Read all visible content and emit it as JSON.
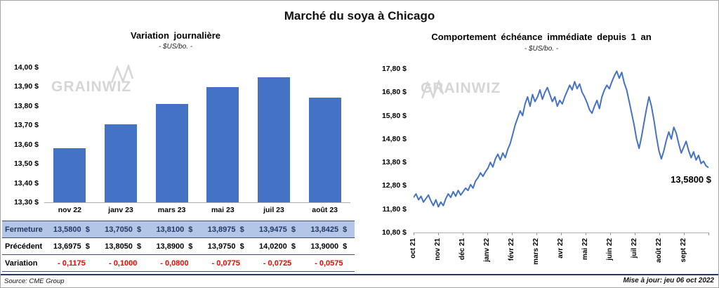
{
  "title": "Marché du soya à Chicago",
  "watermark": "GRAINWIZ",
  "left": {
    "title": "Variation journalière",
    "subtitle": "- $US/bo. -",
    "source": "Source: CME Group"
  },
  "right": {
    "title": "Comportement échéance immédiate depuis 1 an",
    "subtitle": "- $US/bo. -",
    "annotation": "13,5800 $",
    "updated": "Mise à jour: jeu 06 oct 2022"
  },
  "table": {
    "rows": [
      {
        "key": "fermeture",
        "label": "Fermeture",
        "values": [
          "13,5800  $",
          "13,7050  $",
          "13,8100  $",
          "13,8975  $",
          "13,9475  $",
          "13,8425  $"
        ]
      },
      {
        "key": "precedent",
        "label": "Précédent",
        "values": [
          "13,6975  $",
          "13,8050  $",
          "13,8900  $",
          "13,9750  $",
          "14,0200  $",
          "13,9000  $"
        ]
      },
      {
        "key": "variation",
        "label": "Variation",
        "values": [
          "- 0,1175",
          "- 0,1000",
          "- 0,0800",
          "- 0,0775",
          "- 0,0725",
          "- 0,0575"
        ]
      }
    ]
  },
  "colors": {
    "accent_blue": "#4472C4",
    "table_highlight_bg": "#B4C6E7",
    "table_highlight_text": "#1F3864",
    "negative_red": "#FF0000",
    "rule_navy": "#1F3864",
    "watermark_gray": "#D6D6D6"
  },
  "chart_data": [
    {
      "type": "bar",
      "title": "Variation journalière",
      "subtitle": "- $US/bo. -",
      "categories": [
        "nov 22",
        "janv 23",
        "mars 23",
        "mai 23",
        "juil 23",
        "août 23"
      ],
      "values": [
        13.58,
        13.705,
        13.81,
        13.8975,
        13.9475,
        13.8425
      ],
      "ylim": [
        13.3,
        14.0
      ],
      "ytick_labels_bottom_to_top": [
        "13,30 $",
        "13,40 $",
        "13,50 $",
        "13,60 $",
        "13,70 $",
        "13,80 $",
        "13,90 $",
        "14,00 $"
      ],
      "bar_color": "#4472C4",
      "grid": false,
      "legend": "none"
    },
    {
      "type": "line",
      "title": "Comportement échéance immédiate depuis 1 an",
      "subtitle": "- $US/bo. -",
      "x_tick_labels": [
        "oct 21",
        "nov 21",
        "déc 21",
        "janv 22",
        "févr 22",
        "mars 22",
        "avr 22",
        "mai 22",
        "juin 22",
        "juil 22",
        "août 22",
        "sept 22"
      ],
      "ylim": [
        10.8,
        17.8
      ],
      "ytick_labels_bottom_to_top": [
        "10,80 $",
        "11,80 $",
        "12,80 $",
        "13,80 $",
        "14,80 $",
        "15,80 $",
        "16,80 $",
        "17,80 $"
      ],
      "line_color": "#4472C4",
      "grid": false,
      "legend": "none",
      "last_value": 13.58,
      "last_value_label": "13,5800 $",
      "values": [
        12.3,
        12.45,
        12.2,
        12.35,
        12.1,
        12.25,
        12.4,
        12.15,
        11.95,
        12.2,
        11.9,
        12.1,
        11.95,
        12.25,
        12.45,
        12.3,
        12.55,
        12.35,
        12.6,
        12.4,
        12.55,
        12.7,
        12.6,
        12.85,
        12.7,
        13.0,
        13.15,
        13.35,
        13.2,
        13.4,
        13.55,
        13.8,
        13.6,
        13.95,
        14.15,
        13.9,
        14.2,
        14.0,
        14.35,
        14.6,
        15.0,
        15.4,
        15.7,
        16.0,
        15.8,
        16.3,
        16.6,
        16.2,
        16.7,
        16.4,
        16.6,
        16.9,
        16.5,
        16.8,
        17.0,
        16.7,
        16.4,
        16.6,
        16.2,
        16.45,
        16.3,
        16.6,
        16.85,
        17.1,
        16.9,
        17.25,
        16.95,
        17.15,
        16.8,
        16.6,
        16.35,
        16.05,
        15.9,
        16.2,
        16.45,
        16.1,
        16.6,
        16.9,
        17.1,
        16.95,
        17.25,
        17.5,
        17.7,
        17.4,
        17.65,
        17.2,
        16.9,
        16.4,
        15.9,
        15.4,
        14.8,
        14.4,
        14.9,
        15.5,
        16.1,
        16.6,
        16.2,
        15.6,
        14.9,
        14.3,
        13.95,
        14.3,
        14.75,
        15.1,
        14.8,
        15.3,
        15.05,
        14.6,
        14.2,
        14.45,
        14.7,
        14.3,
        14.0,
        14.25,
        13.9,
        14.1,
        13.75,
        13.85,
        13.65,
        13.58
      ]
    }
  ]
}
